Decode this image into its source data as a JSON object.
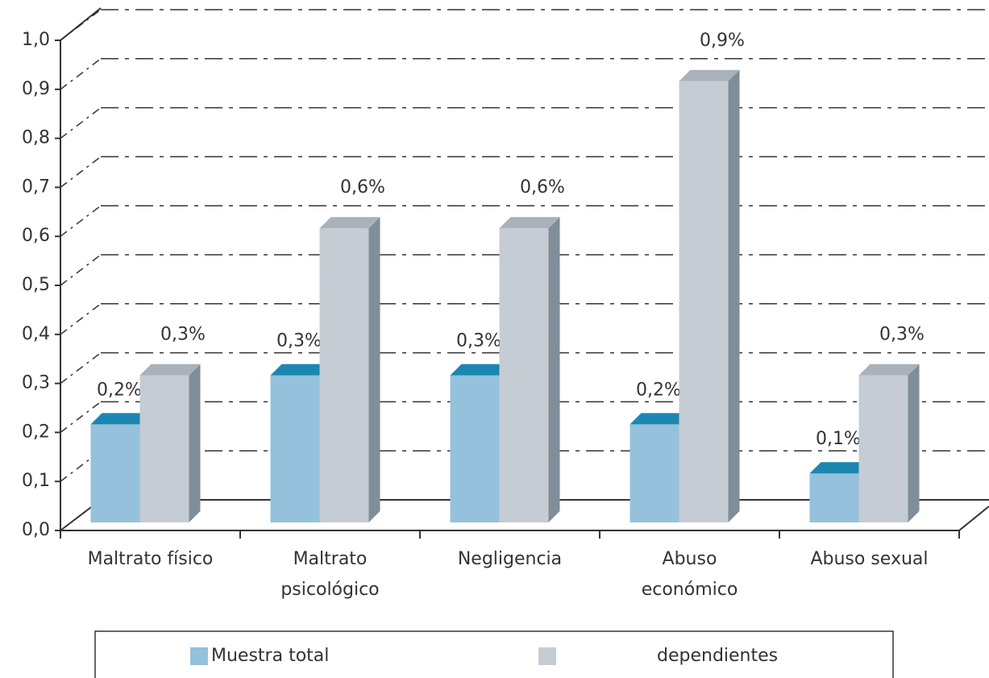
{
  "chart_data": {
    "type": "bar3d",
    "categories": [
      "Maltrato físico",
      "Maltrato psicológico",
      "Negligencia",
      "Abuso económico",
      "Abuso sexual"
    ],
    "series": [
      {
        "name": "Muestra total",
        "color": "#95c1dc",
        "top_color": "#1b87b0",
        "side_color": "#5a9fc2",
        "values": [
          0.2,
          0.3,
          0.3,
          0.2,
          0.1
        ],
        "value_labels": [
          "0,2%",
          "0,3%",
          "0,3%",
          "0,2%",
          "0,1%"
        ]
      },
      {
        "name": "dependientes",
        "color": "#c5ccd4",
        "top_color": "#a9b2ba",
        "side_color": "#7f8e99",
        "values": [
          0.3,
          0.6,
          0.6,
          0.9,
          0.3
        ],
        "value_labels": [
          "0,3%",
          "0,6%",
          "0,6%",
          "0,9%",
          "0,3%"
        ]
      }
    ],
    "ylim": [
      0,
      1
    ],
    "yticks": [
      {
        "value": 0,
        "label": "0,0"
      },
      {
        "value": 0.1,
        "label": "0,1"
      },
      {
        "value": 0.2,
        "label": "0,2"
      },
      {
        "value": 0.3,
        "label": "0,3"
      },
      {
        "value": 0.4,
        "label": "0,4"
      },
      {
        "value": 0.5,
        "label": "0,5"
      },
      {
        "value": 0.6,
        "label": "0,6"
      },
      {
        "value": 0.7,
        "label": "0,7"
      },
      {
        "value": 0.8,
        "label": "0,8"
      },
      {
        "value": 0.9,
        "label": "0,9"
      },
      {
        "value": 1,
        "label": "1,0"
      }
    ],
    "grid": true
  }
}
